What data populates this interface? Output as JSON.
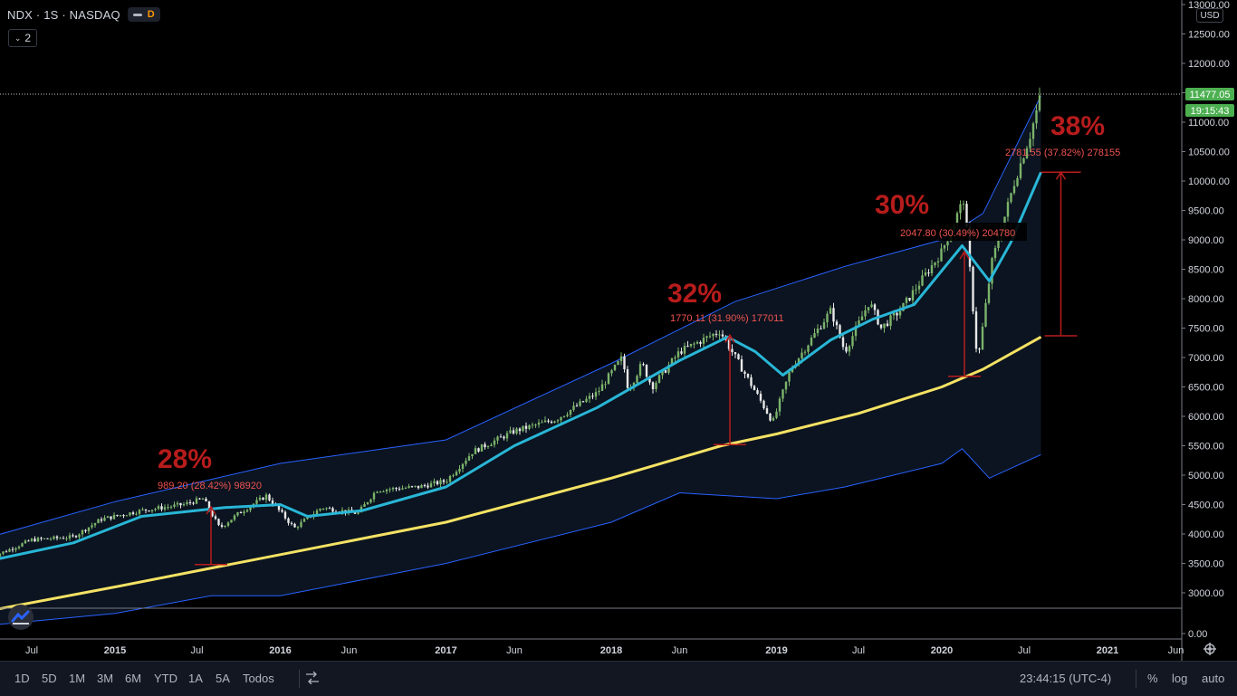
{
  "header": {
    "symbol": "NDX · 1S · NASDAQ",
    "toggle_d": "D",
    "collapse_count": "2"
  },
  "currency": "USD",
  "price_label": "11477.05",
  "countdown_label": "19:15:43",
  "colors": {
    "up": "#7cb36a",
    "down": "#e8e8e8",
    "ema_fast": "#29b6d6",
    "sma_slow": "#f5e264",
    "band": "#2962ff",
    "annotation": "#b71c1c",
    "annotation_text": "#ef5350",
    "price_label_bg": "#4caf50"
  },
  "bottom_bar": {
    "ranges": [
      "1D",
      "5D",
      "1M",
      "3M",
      "6M",
      "YTD",
      "1A",
      "5A",
      "Todos"
    ],
    "clock": "23:44:15 (UTC-4)",
    "right_buttons": [
      "%",
      "log",
      "auto"
    ]
  },
  "chart_data": {
    "type": "candlestick",
    "title": "NDX · 1S · NASDAQ",
    "ylim": [
      0,
      13000
    ],
    "y_ticks": [
      0,
      3000,
      3500,
      4000,
      4500,
      5000,
      5500,
      6000,
      6500,
      7000,
      7500,
      8000,
      8500,
      9000,
      9500,
      10000,
      10500,
      11000,
      11500,
      12000,
      12500,
      13000
    ],
    "y_tick_labels": [
      "0.00",
      "3000.00",
      "3500.00",
      "4000.00",
      "4500.00",
      "5000.00",
      "5500.00",
      "6000.00",
      "6500.00",
      "7000.00",
      "7500.00",
      "8000.00",
      "8500.00",
      "9000.00",
      "9500.00",
      "10000.00",
      "10500.00",
      "11000.00",
      "11500.00",
      "12000.00",
      "12500.00",
      "13000.00"
    ],
    "x_ticks": [
      {
        "date": "2014-07-01",
        "label": "Jul",
        "bold": false
      },
      {
        "date": "2015-01-01",
        "label": "2015",
        "bold": true
      },
      {
        "date": "2015-07-01",
        "label": "Jul",
        "bold": false
      },
      {
        "date": "2016-01-01",
        "label": "2016",
        "bold": true
      },
      {
        "date": "2016-06-01",
        "label": "Jun",
        "bold": false
      },
      {
        "date": "2017-01-01",
        "label": "2017",
        "bold": true
      },
      {
        "date": "2017-06-01",
        "label": "Jun",
        "bold": false
      },
      {
        "date": "2018-01-01",
        "label": "2018",
        "bold": true
      },
      {
        "date": "2018-06-01",
        "label": "Jun",
        "bold": false
      },
      {
        "date": "2019-01-01",
        "label": "2019",
        "bold": true
      },
      {
        "date": "2019-07-01",
        "label": "Jul",
        "bold": false
      },
      {
        "date": "2020-01-01",
        "label": "2020",
        "bold": true
      },
      {
        "date": "2020-07-01",
        "label": "Jul",
        "bold": false
      },
      {
        "date": "2021-01-01",
        "label": "2021",
        "bold": true
      },
      {
        "date": "2021-06-01",
        "label": "Jun",
        "bold": false
      }
    ],
    "last_price": 11477.05,
    "price_path": [
      [
        "2014-04-01",
        3600
      ],
      [
        "2014-07-01",
        3900
      ],
      [
        "2014-10-01",
        3950
      ],
      [
        "2014-12-01",
        4250
      ],
      [
        "2015-03-01",
        4400
      ],
      [
        "2015-06-01",
        4500
      ],
      [
        "2015-07-15",
        4600
      ],
      [
        "2015-08-20",
        4100
      ],
      [
        "2015-10-01",
        4350
      ],
      [
        "2015-12-01",
        4650
      ],
      [
        "2016-02-01",
        4100
      ],
      [
        "2016-04-01",
        4450
      ],
      [
        "2016-06-20",
        4350
      ],
      [
        "2016-08-01",
        4750
      ],
      [
        "2016-11-01",
        4800
      ],
      [
        "2017-01-01",
        4900
      ],
      [
        "2017-03-01",
        5400
      ],
      [
        "2017-06-01",
        5750
      ],
      [
        "2017-09-01",
        5950
      ],
      [
        "2017-12-01",
        6400
      ],
      [
        "2018-01-25",
        7000
      ],
      [
        "2018-02-08",
        6450
      ],
      [
        "2018-03-10",
        6900
      ],
      [
        "2018-04-01",
        6500
      ],
      [
        "2018-06-01",
        7100
      ],
      [
        "2018-08-29",
        7450
      ],
      [
        "2018-10-25",
        6700
      ],
      [
        "2018-12-24",
        5900
      ],
      [
        "2019-02-01",
        6800
      ],
      [
        "2019-05-01",
        7800
      ],
      [
        "2019-06-01",
        7100
      ],
      [
        "2019-07-25",
        7950
      ],
      [
        "2019-08-20",
        7500
      ],
      [
        "2019-10-01",
        7800
      ],
      [
        "2020-01-01",
        8800
      ],
      [
        "2020-02-19",
        9700
      ],
      [
        "2020-03-20",
        6900
      ],
      [
        "2020-04-20",
        8600
      ],
      [
        "2020-06-10",
        10000
      ],
      [
        "2020-07-15",
        10800
      ],
      [
        "2020-08-07",
        11477
      ]
    ],
    "series": [
      {
        "type": "band",
        "upper": [
          [
            "2014-04-01",
            3950
          ],
          [
            "2015-01-01",
            4550
          ],
          [
            "2016-01-01",
            5200
          ],
          [
            "2017-01-01",
            5600
          ],
          [
            "2018-01-01",
            6900
          ],
          [
            "2018-10-01",
            7950
          ],
          [
            "2019-06-01",
            8550
          ],
          [
            "2020-01-01",
            9000
          ],
          [
            "2020-04-01",
            9450
          ],
          [
            "2020-08-07",
            11450
          ]
        ],
        "lower": [
          [
            "2014-04-01",
            2450
          ],
          [
            "2015-01-01",
            2650
          ],
          [
            "2015-08-01",
            2950
          ],
          [
            "2016-01-01",
            2950
          ],
          [
            "2017-01-01",
            3500
          ],
          [
            "2018-01-01",
            4200
          ],
          [
            "2018-06-01",
            4700
          ],
          [
            "2019-01-01",
            4600
          ],
          [
            "2019-06-01",
            4800
          ],
          [
            "2020-01-01",
            5200
          ],
          [
            "2020-02-15",
            5450
          ],
          [
            "2020-04-15",
            4950
          ],
          [
            "2020-08-07",
            5350
          ]
        ]
      },
      {
        "type": "ema_fast",
        "values": [
          [
            "2014-04-01",
            3550
          ],
          [
            "2014-10-01",
            3850
          ],
          [
            "2015-03-01",
            4300
          ],
          [
            "2015-09-01",
            4450
          ],
          [
            "2016-01-01",
            4500
          ],
          [
            "2016-03-01",
            4300
          ],
          [
            "2016-07-01",
            4400
          ],
          [
            "2017-01-01",
            4800
          ],
          [
            "2017-06-01",
            5500
          ],
          [
            "2017-12-01",
            6150
          ],
          [
            "2018-06-01",
            6950
          ],
          [
            "2018-09-15",
            7350
          ],
          [
            "2018-11-15",
            7100
          ],
          [
            "2019-01-15",
            6700
          ],
          [
            "2019-05-01",
            7300
          ],
          [
            "2019-08-01",
            7650
          ],
          [
            "2019-11-01",
            7900
          ],
          [
            "2020-02-15",
            8900
          ],
          [
            "2020-04-15",
            8300
          ],
          [
            "2020-06-01",
            8950
          ],
          [
            "2020-08-07",
            10150
          ]
        ]
      },
      {
        "type": "sma_slow",
        "values": [
          [
            "2014-04-01",
            2700
          ],
          [
            "2015-01-01",
            3100
          ],
          [
            "2016-01-01",
            3650
          ],
          [
            "2017-01-01",
            4200
          ],
          [
            "2018-01-01",
            4950
          ],
          [
            "2018-09-01",
            5500
          ],
          [
            "2019-01-01",
            5700
          ],
          [
            "2019-07-01",
            6050
          ],
          [
            "2020-01-01",
            6500
          ],
          [
            "2020-04-01",
            6800
          ],
          [
            "2020-08-07",
            7350
          ]
        ]
      }
    ],
    "annotations": [
      {
        "label": "28%",
        "detail": "989.20 (28.42%) 98920",
        "date": "2015-08-01",
        "from": 3480,
        "to": 4460
      },
      {
        "label": "32%",
        "detail": "1770.11 (31.90%) 177011",
        "date": "2018-09-20",
        "from": 5520,
        "to": 7380
      },
      {
        "label": "30%",
        "detail": "2047.80 (30.49%) 204780",
        "date": "2020-02-20",
        "from": 6680,
        "to": 8800
      },
      {
        "label": "38%",
        "detail": "2781.55 (37.82%) 278155",
        "date": "2020-09-20",
        "from": 7370,
        "to": 10150
      }
    ]
  }
}
